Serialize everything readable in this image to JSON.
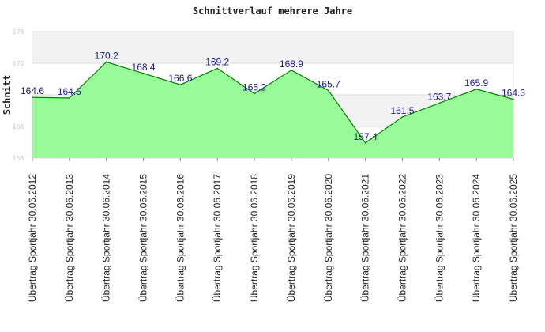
{
  "chart_data": {
    "type": "area",
    "title": "Schnittverlauf mehrere Jahre",
    "xlabel": "",
    "ylabel": "Schnitt",
    "ylim": [
      155,
      175
    ],
    "yticks": [
      155,
      160,
      170,
      175
    ],
    "ytick_labels": [
      "155",
      "160",
      "170",
      "175"
    ],
    "categories": [
      "Übertrag Sportjahr 30.06.2012",
      "Übertrag Sportjahr 30.06.2013",
      "Übertrag Sportjahr 30.06.2014",
      "Übertrag Sportjahr 30.06.2015",
      "Übertrag Sportjahr 30.06.2016",
      "Übertrag Sportjahr 30.06.2017",
      "Übertrag Sportjahr 30.06.2018",
      "Übertrag Sportjahr 30.06.2019",
      "Übertrag Sportjahr 30.06.2020",
      "Übertrag Sportjahr 30.06.2021",
      "Übertrag Sportjahr 30.06.2022",
      "Übertrag Sportjahr 30.06.2023",
      "Übertrag Sportjahr 30.06.2024",
      "Übertrag Sportjahr 30.06.2025"
    ],
    "values": [
      164.6,
      164.5,
      170.2,
      168.4,
      166.6,
      169.2,
      165.2,
      168.9,
      165.7,
      157.4,
      161.5,
      163.7,
      165.9,
      164.3
    ],
    "value_labels": [
      "164.6",
      "164.5",
      "170.2",
      "168.4",
      "166.6",
      "169.2",
      "165.2",
      "168.9",
      "165.7",
      "157.4",
      "161.5",
      "163.7",
      "165.9",
      "164.3"
    ],
    "colors": {
      "fill": "#98fb98",
      "line": "#008000",
      "band": "#f2f2f2",
      "grid": "#dddddd",
      "label": "#1a1a8c"
    }
  }
}
